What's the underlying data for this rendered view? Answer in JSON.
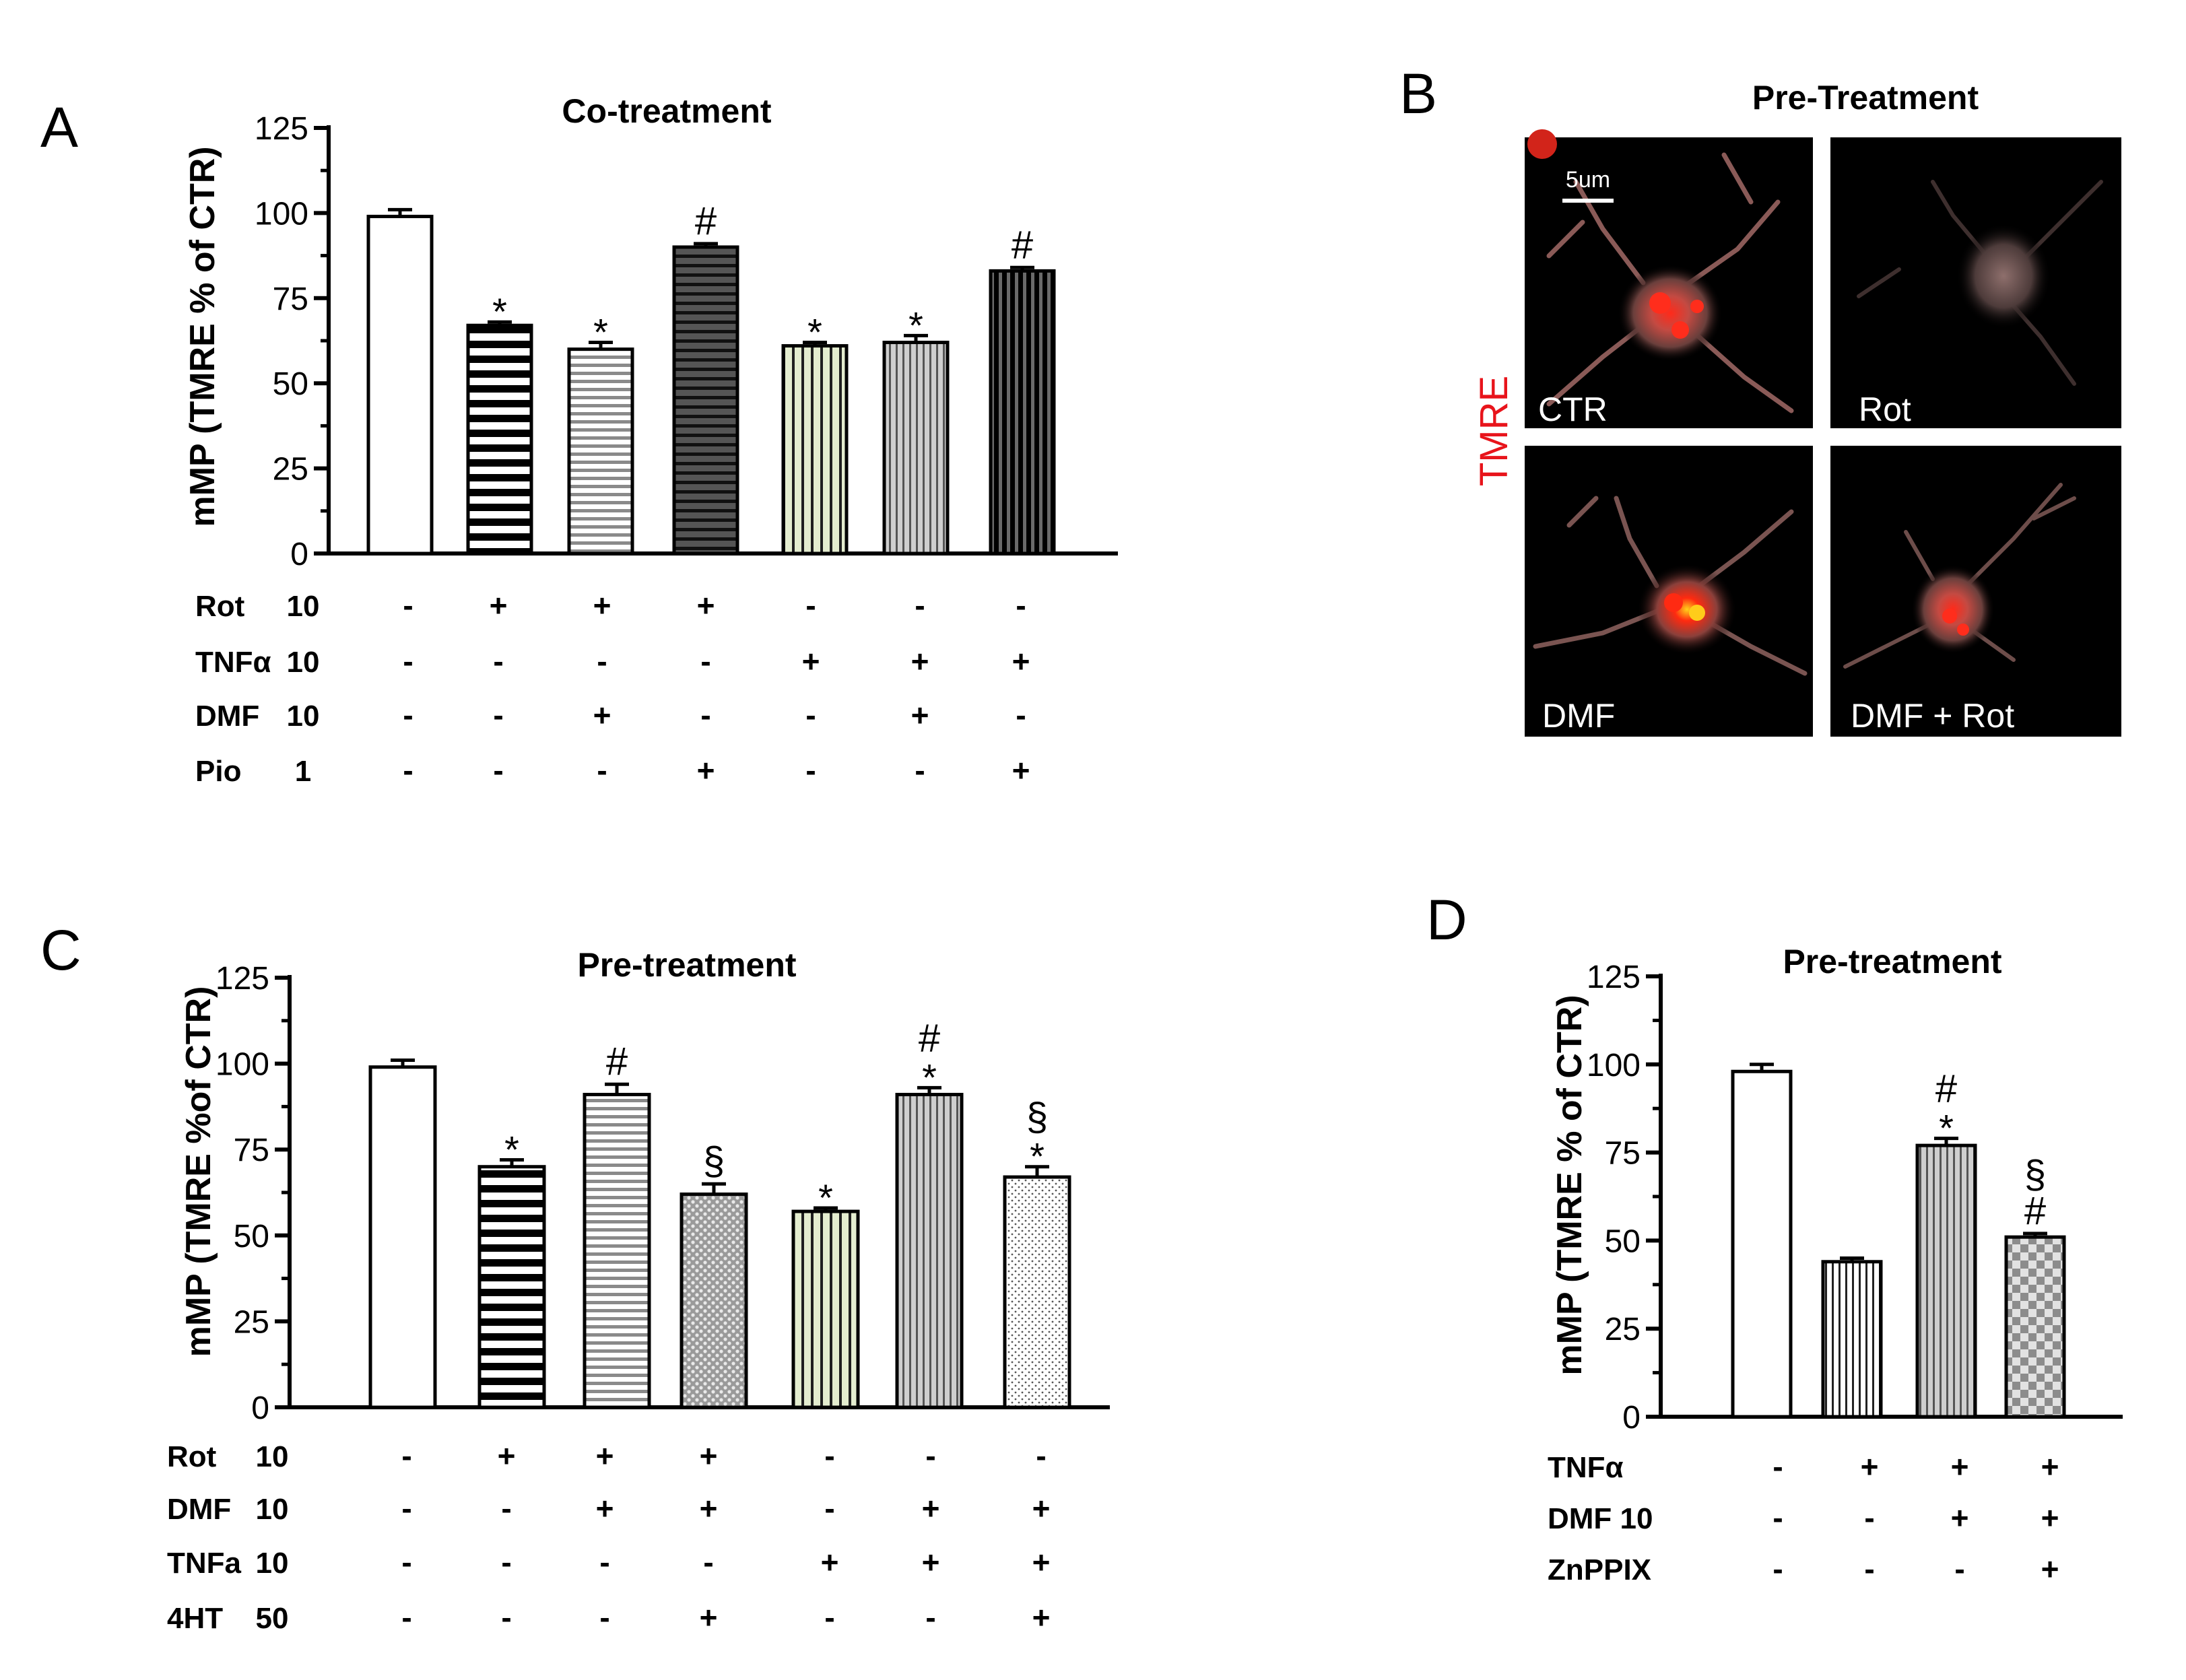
{
  "panels": {
    "A": {
      "letter": "A",
      "title": "Co-treatment",
      "ylabel": "mMP (TMRE % of CTR)",
      "row_labels": [
        "Rot",
        "TNFα",
        "DMF",
        "Pio"
      ],
      "row_doses": [
        "10",
        "10",
        "10",
        "1"
      ]
    },
    "B": {
      "letter": "B",
      "title": "Pre-Treatment",
      "side_label": "TMRE",
      "scale_bar": "5um",
      "images": [
        "CTR",
        "Rot",
        "DMF",
        "DMF + Rot"
      ]
    },
    "C": {
      "letter": "C",
      "title": "Pre-treatment",
      "ylabel": "mMP (TMRE %of CTR)",
      "row_labels": [
        "Rot",
        "DMF",
        "TNFa",
        "4HT"
      ],
      "row_doses": [
        "10",
        "10",
        "10",
        "50"
      ]
    },
    "D": {
      "letter": "D",
      "title": "Pre-treatment",
      "ylabel": "mMP (TMRE % of CTR)",
      "row_labels": [
        "TNFα",
        "DMF 10",
        "ZnPPIX"
      ],
      "row_doses": [
        "",
        "",
        ""
      ]
    }
  },
  "chart_data": [
    {
      "panel": "A",
      "type": "bar",
      "title": "Co-treatment",
      "xlabel": "",
      "ylabel": "mMP (TMRE % of CTR)",
      "ylim": [
        0,
        125
      ],
      "yticks": [
        0,
        25,
        50,
        75,
        100,
        125
      ],
      "values": [
        99,
        67,
        60,
        90,
        61,
        62,
        83
      ],
      "errors": [
        2,
        1,
        2,
        1,
        1,
        2,
        1
      ],
      "annotations": [
        "",
        "*",
        "*",
        "#",
        "*",
        "*",
        "#"
      ],
      "conditions": [
        [
          "-",
          "+",
          "+",
          "+",
          "-",
          "-",
          "-"
        ],
        [
          "-",
          "-",
          "-",
          "-",
          "+",
          "+",
          "+"
        ],
        [
          "-",
          "-",
          "+",
          "-",
          "-",
          "+",
          "-"
        ],
        [
          "-",
          "-",
          "-",
          "+",
          "-",
          "-",
          "+"
        ]
      ],
      "colors": {
        "primary": "#000000",
        "green_tint": "#e4edcf",
        "gray": "#aaaaaa"
      }
    },
    {
      "panel": "C",
      "type": "bar",
      "title": "Pre-treatment",
      "xlabel": "",
      "ylabel": "mMP (TMRE %of CTR)",
      "ylim": [
        0,
        125
      ],
      "yticks": [
        0,
        25,
        50,
        75,
        100,
        125
      ],
      "values": [
        99,
        70,
        91,
        62,
        57,
        91,
        67
      ],
      "errors": [
        2,
        2,
        3,
        3,
        1,
        2,
        3
      ],
      "annotations": [
        "",
        "*",
        "#",
        "§",
        "*",
        "#\n*",
        "§\n*"
      ],
      "conditions": [
        [
          "-",
          "+",
          "+",
          "+",
          "-",
          "-",
          "-"
        ],
        [
          "-",
          "-",
          "+",
          "+",
          "-",
          "+",
          "+"
        ],
        [
          "-",
          "-",
          "-",
          "-",
          "+",
          "+",
          "+"
        ],
        [
          "-",
          "-",
          "-",
          "+",
          "-",
          "-",
          "+"
        ]
      ]
    },
    {
      "panel": "D",
      "type": "bar",
      "title": "Pre-treatment",
      "xlabel": "",
      "ylabel": "mMP (TMRE % of CTR)",
      "ylim": [
        0,
        125
      ],
      "yticks": [
        0,
        25,
        50,
        75,
        100,
        125
      ],
      "values": [
        98,
        44,
        77,
        51
      ],
      "errors": [
        2,
        1,
        2,
        1
      ],
      "annotations": [
        "",
        "",
        "#\n*",
        "§\n#"
      ],
      "conditions": [
        [
          "-",
          "+",
          "+",
          "+"
        ],
        [
          "-",
          "-",
          "+",
          "+"
        ],
        [
          "-",
          "-",
          "-",
          "+"
        ]
      ]
    }
  ]
}
